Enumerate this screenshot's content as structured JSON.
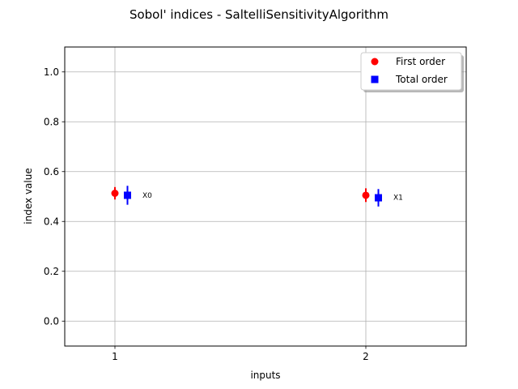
{
  "chart_data": {
    "type": "scatter",
    "title": "Sobol' indices - SaltelliSensitivityAlgorithm",
    "xlabel": "inputs",
    "ylabel": "index value",
    "xlim": [
      0.8,
      2.4
    ],
    "ylim": [
      -0.1,
      1.1
    ],
    "x_ticks": [
      1,
      2
    ],
    "x_tick_labels": [
      "1",
      "2"
    ],
    "y_ticks": [
      0.0,
      0.2,
      0.4,
      0.6,
      0.8,
      1.0
    ],
    "y_tick_labels": [
      "0.0",
      "0.2",
      "0.4",
      "0.6",
      "0.8",
      "1.0"
    ],
    "grid": true,
    "legend_position": "top-right",
    "series": [
      {
        "name": "First order",
        "marker": "circle",
        "color": "#ff0000",
        "x": [
          1,
          2
        ],
        "values": [
          0.513,
          0.505
        ],
        "error_low": [
          0.488,
          0.478
        ],
        "error_high": [
          0.538,
          0.533
        ]
      },
      {
        "name": "Total order",
        "marker": "square",
        "color": "#0000ff",
        "x": [
          1.05,
          2.05
        ],
        "values": [
          0.505,
          0.495
        ],
        "error_low": [
          0.467,
          0.46
        ],
        "error_high": [
          0.543,
          0.53
        ]
      }
    ],
    "annotations": [
      {
        "text": "X0",
        "x": 1.1,
        "y": 0.505
      },
      {
        "text": "X1",
        "x": 2.1,
        "y": 0.497
      }
    ]
  }
}
